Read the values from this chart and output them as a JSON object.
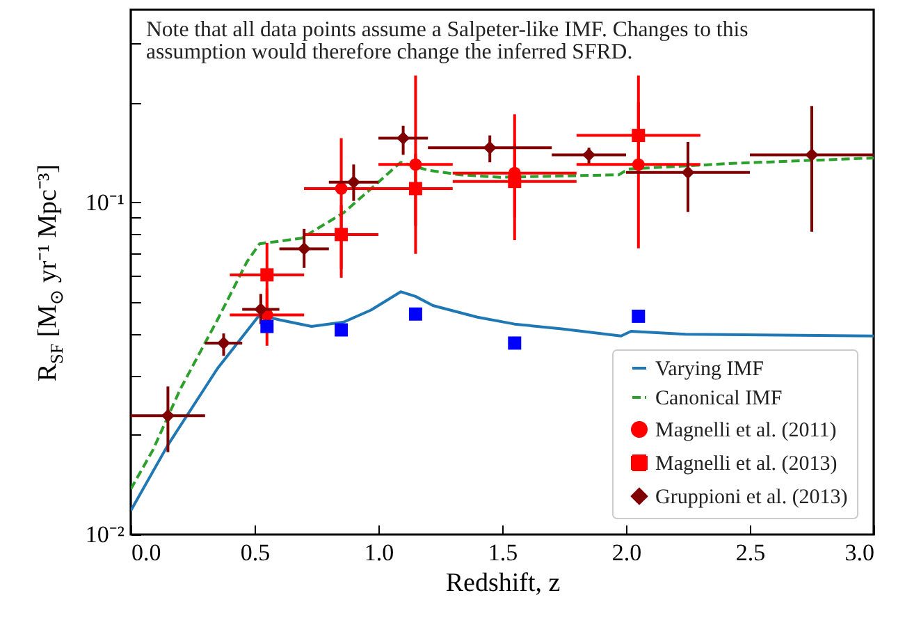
{
  "chart_data": {
    "type": "scatter",
    "xlabel": "Redshift, z",
    "ylabel": "R$_{SF}$ [M$_{⊙}$ yr⁻¹ Mpc⁻³]",
    "log": "y",
    "grid": false,
    "legend": "bottom right",
    "xlim": [
      0,
      3
    ],
    "xticks": [
      {
        "value": 0,
        "label": "0.0"
      },
      {
        "value": 0.5,
        "label": "0.5"
      },
      {
        "value": 1,
        "label": "1.0"
      },
      {
        "value": 1.5,
        "label": "1.5"
      },
      {
        "value": 2,
        "label": "2.0"
      },
      {
        "value": 2.5,
        "label": "2.5"
      },
      {
        "value": 3,
        "label": "3.0"
      }
    ],
    "ylim": [
      0.01,
      0.38
    ],
    "yticks": [
      {
        "value": 0.01,
        "label": "10⁻²"
      },
      {
        "value": 0.02,
        "label": null
      },
      {
        "value": 0.03,
        "label": null
      },
      {
        "value": 0.04,
        "label": null
      },
      {
        "value": 0.05,
        "label": null
      },
      {
        "value": 0.06,
        "label": null
      },
      {
        "value": 0.07,
        "label": null
      },
      {
        "value": 0.08,
        "label": null
      },
      {
        "value": 0.09,
        "label": null
      },
      {
        "value": 0.1,
        "label": "10⁻¹"
      },
      {
        "value": 0.2,
        "label": null
      },
      {
        "value": 0.3,
        "label": null
      }
    ],
    "annotations": [
      "Note that all data points assume a Salpeter-like IMF. Changes to this assumption would therefore change the inferred SFRD."
    ],
    "series": [
      {
        "name": "Varying IMF",
        "type": "line",
        "line_style": "solid",
        "color": "#1f77b4",
        "x": [
          0,
          0.15,
          0.35,
          0.52,
          0.6,
          0.73,
          0.86,
          0.97,
          1.09,
          1.15,
          1.22,
          1.4,
          1.55,
          1.74,
          1.98,
          2.02,
          2.24,
          3.0
        ],
        "values": [
          0.0118,
          0.0186,
          0.0316,
          0.0458,
          0.0443,
          0.0423,
          0.0436,
          0.0474,
          0.0538,
          0.0521,
          0.0489,
          0.0451,
          0.043,
          0.0416,
          0.0396,
          0.0409,
          0.0401,
          0.0396
        ]
      },
      {
        "name": "Canonical IMF",
        "type": "line",
        "line_style": "dashed",
        "color": "#2ca02c",
        "x": [
          0,
          0.09,
          0.2,
          0.35,
          0.47,
          0.52,
          0.69,
          0.86,
          1.0,
          1.09,
          1.2,
          1.33,
          1.49,
          1.97,
          2.01,
          2.43,
          3.0
        ],
        "values": [
          0.0137,
          0.018,
          0.0274,
          0.0443,
          0.0664,
          0.075,
          0.078,
          0.0931,
          0.115,
          0.132,
          0.125,
          0.121,
          0.119,
          0.121,
          0.126,
          0.131,
          0.136
        ]
      },
      {
        "name": "Magnelli et al. (2011)",
        "marker": "circle",
        "color": "#ff0000",
        "x": [
          0.55,
          0.85,
          1.15,
          1.55,
          2.05
        ],
        "values": [
          0.0458,
          0.11,
          0.13,
          0.1225,
          0.13
        ],
        "errors": [
          [
            0.037,
            0.055
          ],
          [
            0.0593,
            0.156
          ],
          [
            0.07,
            0.241
          ],
          [
            0.077,
            0.184
          ],
          [
            0.0727,
            0.2
          ]
        ],
        "xerrors": [
          [
            0.4,
            0.7
          ],
          [
            0.7,
            1.0
          ],
          [
            1.0,
            1.3
          ],
          [
            1.3,
            1.8
          ],
          [
            1.8,
            2.3
          ]
        ]
      },
      {
        "name": "Magnelli et al. (2013)",
        "marker": "square",
        "color": "#ff0000",
        "x": [
          0.55,
          0.85,
          1.15,
          1.55,
          2.05
        ],
        "values": [
          0.0605,
          0.08,
          0.11,
          0.1156,
          0.159
        ],
        "errors": [
          [
            0.045,
            0.0755
          ],
          [
            0.063,
            0.098
          ],
          [
            0.085,
            0.14
          ],
          [
            0.09,
            0.15
          ],
          [
            0.13,
            0.241
          ]
        ],
        "xerrors": [
          [
            0.4,
            0.7
          ],
          [
            0.7,
            1.0
          ],
          [
            0.7,
            1.3
          ],
          [
            1.3,
            1.8
          ],
          [
            1.8,
            2.3
          ]
        ]
      },
      {
        "name": "Gruppioni et al. (2013)",
        "marker": "diamond",
        "color": "#800000",
        "x": [
          0.15,
          0.375,
          0.525,
          0.7,
          0.9,
          1.1,
          1.45,
          1.85,
          2.25,
          2.75
        ],
        "values": [
          0.0228,
          0.0377,
          0.0476,
          0.0725,
          0.115,
          0.156,
          0.146,
          0.139,
          0.123,
          0.139
        ],
        "errors": [
          [
            0.0177,
            0.0279
          ],
          [
            0.0345,
            0.0403
          ],
          [
            0.043,
            0.053
          ],
          [
            0.0635,
            0.0832
          ],
          [
            0.101,
            0.13
          ],
          [
            0.139,
            0.17
          ],
          [
            0.132,
            0.159
          ],
          [
            0.131,
            0.146
          ],
          [
            0.0935,
            0.152
          ],
          [
            0.0816,
            0.195
          ]
        ],
        "xerrors": [
          [
            0,
            0.3
          ],
          [
            0.3,
            0.45
          ],
          [
            0.45,
            0.6
          ],
          [
            0.6,
            0.8
          ],
          [
            0.8,
            1.0
          ],
          [
            1.0,
            1.2
          ],
          [
            1.2,
            1.7
          ],
          [
            1.7,
            2.0
          ],
          [
            2.0,
            2.5
          ],
          [
            2.5,
            3.0
          ]
        ]
      },
      {
        "marker": "square",
        "color": "#0000ff",
        "x": [
          0.55,
          0.85,
          1.15,
          1.55,
          2.05
        ],
        "values": [
          0.0423,
          0.0413,
          0.0461,
          0.0377,
          0.0454
        ]
      }
    ]
  }
}
